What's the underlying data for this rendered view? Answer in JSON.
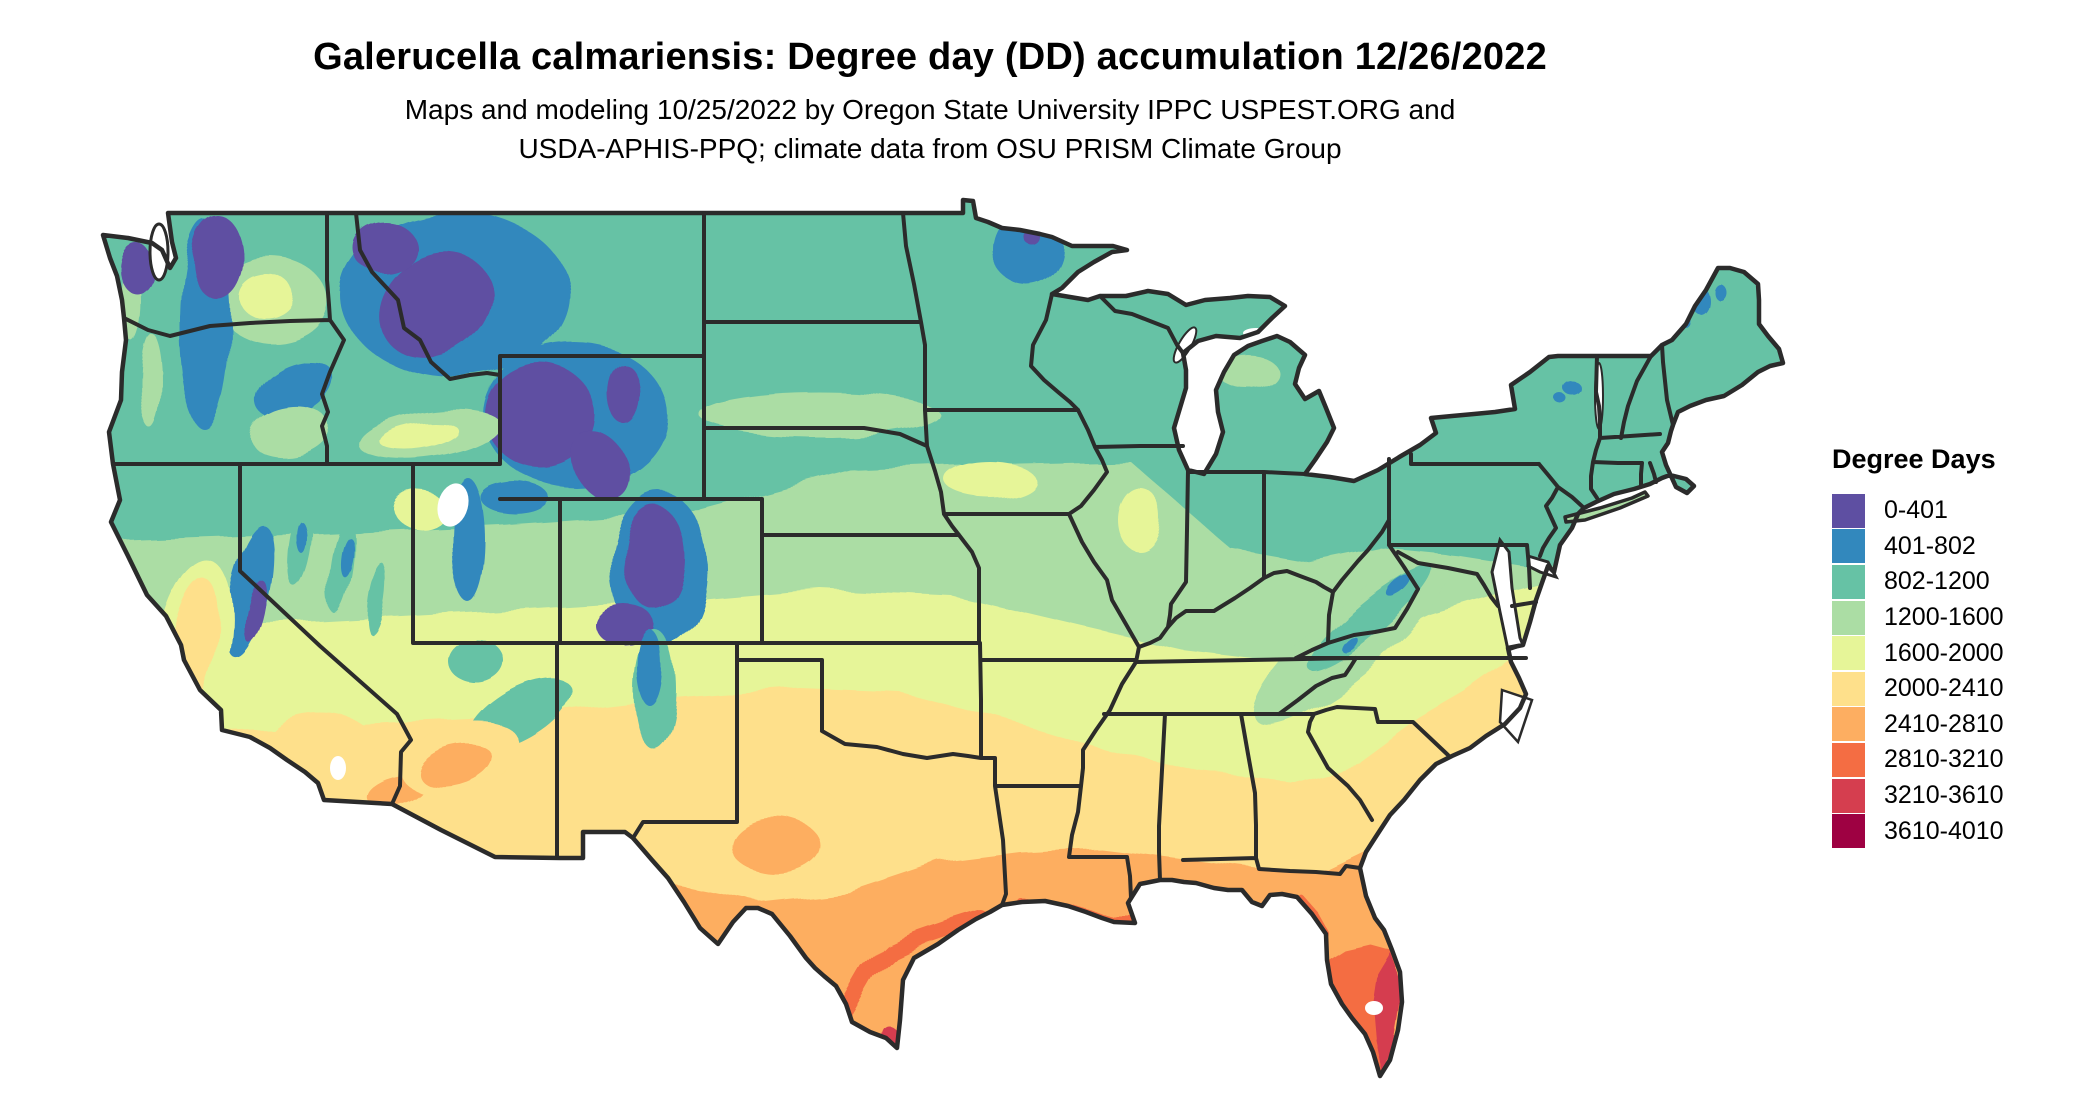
{
  "header": {
    "title": "Galerucella calmariensis: Degree day (DD) accumulation 12/26/2022",
    "subtitle_line1": "Maps and modeling 10/25/2022 by Oregon State University IPPC USPEST.ORG and",
    "subtitle_line2": "USDA-APHIS-PPQ; climate data from OSU PRISM Climate Group"
  },
  "legend": {
    "title": "Degree Days",
    "classes": [
      {
        "label": "0-401",
        "color": "#5e4fa2"
      },
      {
        "label": "401-802",
        "color": "#3288bd"
      },
      {
        "label": "802-1200",
        "color": "#66c2a5"
      },
      {
        "label": "1200-1600",
        "color": "#abdda4"
      },
      {
        "label": "1600-2000",
        "color": "#e6f598"
      },
      {
        "label": "2000-2410",
        "color": "#fee08b"
      },
      {
        "label": "2410-2810",
        "color": "#fdae61"
      },
      {
        "label": "2810-3210",
        "color": "#f46d43"
      },
      {
        "label": "3210-3610",
        "color": "#d53e4f"
      },
      {
        "label": "3610-4010",
        "color": "#9e0142"
      }
    ]
  },
  "chart_data": {
    "type": "heatmap",
    "title": "Galerucella calmariensis: Degree day (DD) accumulation 12/26/2022",
    "units": "degree days",
    "legend_position": "right",
    "classes": [
      "0-401",
      "401-802",
      "802-1200",
      "1200-1600",
      "1600-2000",
      "2000-2410",
      "2410-2810",
      "2810-3210",
      "3210-3610",
      "3610-4010"
    ],
    "class_colors": [
      "#5e4fa2",
      "#3288bd",
      "#66c2a5",
      "#abdda4",
      "#e6f598",
      "#fee08b",
      "#fdae61",
      "#f46d43",
      "#d53e4f",
      "#9e0142"
    ]
  },
  "map": {
    "border_color": "#2b2b2b",
    "background_color": "#ffffff"
  }
}
